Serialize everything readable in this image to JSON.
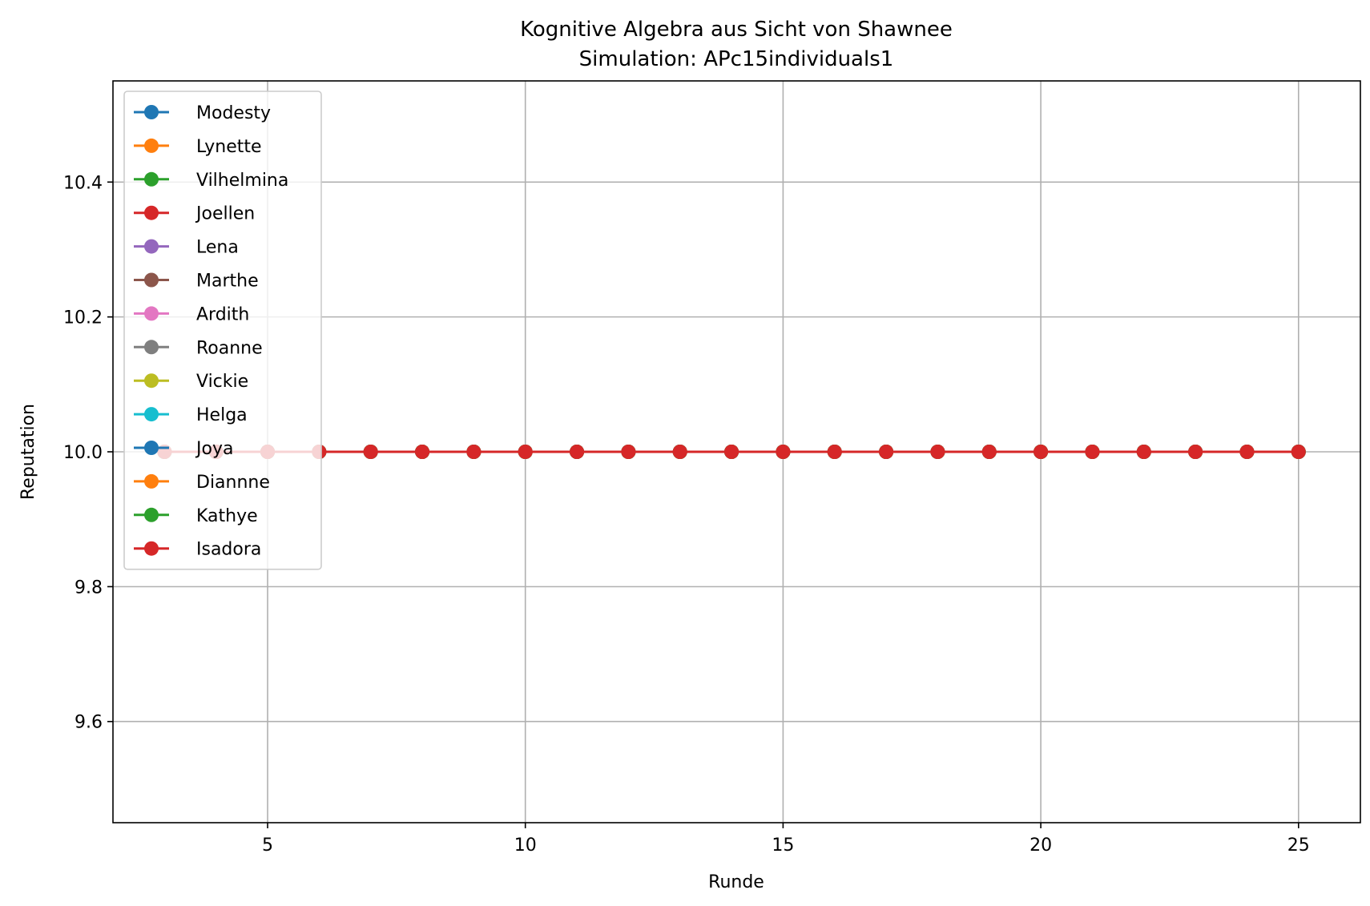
{
  "chart_data": {
    "type": "line",
    "title": "Kognitive Algebra aus Sicht von Shawnee",
    "subtitle": "Simulation: APc15individuals1",
    "xlabel": "Runde",
    "ylabel": "Reputation",
    "xlim": [
      2.0,
      26.2
    ],
    "ylim": [
      9.45,
      10.55
    ],
    "xticks": [
      5,
      10,
      15,
      20,
      25
    ],
    "yticks": [
      9.6,
      9.8,
      10.0,
      10.2,
      10.4
    ],
    "xtick_labels": [
      "5",
      "10",
      "15",
      "20",
      "25"
    ],
    "ytick_labels": [
      "9.6",
      "9.8",
      "10.0",
      "10.2",
      "10.4"
    ],
    "grid": true,
    "legend_position": "top-left",
    "series": [
      {
        "name": "Modesty",
        "color": "#1f77b4",
        "x": [
          3,
          4,
          5,
          6,
          7,
          8,
          9,
          10,
          11,
          12,
          13,
          14,
          15,
          16,
          17,
          18,
          19,
          20,
          21,
          22,
          23,
          24,
          25
        ],
        "y": [
          10,
          10,
          10,
          10,
          10,
          10,
          10,
          10,
          10,
          10,
          10,
          10,
          10,
          10,
          10,
          10,
          10,
          10,
          10,
          10,
          10,
          10,
          10
        ]
      },
      {
        "name": "Lynette",
        "color": "#ff7f0e",
        "x": [
          3,
          4,
          5,
          6,
          7,
          8,
          9,
          10,
          11,
          12,
          13,
          14,
          15,
          16,
          17,
          18,
          19,
          20,
          21,
          22,
          23,
          24,
          25
        ],
        "y": [
          10,
          10,
          10,
          10,
          10,
          10,
          10,
          10,
          10,
          10,
          10,
          10,
          10,
          10,
          10,
          10,
          10,
          10,
          10,
          10,
          10,
          10,
          10
        ]
      },
      {
        "name": "Vilhelmina",
        "color": "#2ca02c",
        "x": [
          3,
          4,
          5,
          6,
          7,
          8,
          9,
          10,
          11,
          12,
          13,
          14,
          15,
          16,
          17,
          18,
          19,
          20,
          21,
          22,
          23,
          24,
          25
        ],
        "y": [
          10,
          10,
          10,
          10,
          10,
          10,
          10,
          10,
          10,
          10,
          10,
          10,
          10,
          10,
          10,
          10,
          10,
          10,
          10,
          10,
          10,
          10,
          10
        ]
      },
      {
        "name": "Joellen",
        "color": "#d62728",
        "x": [
          3,
          4,
          5,
          6,
          7,
          8,
          9,
          10,
          11,
          12,
          13,
          14,
          15,
          16,
          17,
          18,
          19,
          20,
          21,
          22,
          23,
          24,
          25
        ],
        "y": [
          10,
          10,
          10,
          10,
          10,
          10,
          10,
          10,
          10,
          10,
          10,
          10,
          10,
          10,
          10,
          10,
          10,
          10,
          10,
          10,
          10,
          10,
          10
        ]
      },
      {
        "name": "Lena",
        "color": "#9467bd",
        "x": [
          3,
          4,
          5,
          6,
          7,
          8,
          9,
          10,
          11,
          12,
          13,
          14,
          15,
          16,
          17,
          18,
          19,
          20,
          21,
          22,
          23,
          24,
          25
        ],
        "y": [
          10,
          10,
          10,
          10,
          10,
          10,
          10,
          10,
          10,
          10,
          10,
          10,
          10,
          10,
          10,
          10,
          10,
          10,
          10,
          10,
          10,
          10,
          10
        ]
      },
      {
        "name": "Marthe",
        "color": "#8c564b",
        "x": [
          3,
          4,
          5,
          6,
          7,
          8,
          9,
          10,
          11,
          12,
          13,
          14,
          15,
          16,
          17,
          18,
          19,
          20,
          21,
          22,
          23,
          24,
          25
        ],
        "y": [
          10,
          10,
          10,
          10,
          10,
          10,
          10,
          10,
          10,
          10,
          10,
          10,
          10,
          10,
          10,
          10,
          10,
          10,
          10,
          10,
          10,
          10,
          10
        ]
      },
      {
        "name": "Ardith",
        "color": "#e377c2",
        "x": [
          3,
          4,
          5,
          6,
          7,
          8,
          9,
          10,
          11,
          12,
          13,
          14,
          15,
          16,
          17,
          18,
          19,
          20,
          21,
          22,
          23,
          24,
          25
        ],
        "y": [
          10,
          10,
          10,
          10,
          10,
          10,
          10,
          10,
          10,
          10,
          10,
          10,
          10,
          10,
          10,
          10,
          10,
          10,
          10,
          10,
          10,
          10,
          10
        ]
      },
      {
        "name": "Roanne",
        "color": "#7f7f7f",
        "x": [
          3,
          4,
          5,
          6,
          7,
          8,
          9,
          10,
          11,
          12,
          13,
          14,
          15,
          16,
          17,
          18,
          19,
          20,
          21,
          22,
          23,
          24,
          25
        ],
        "y": [
          10,
          10,
          10,
          10,
          10,
          10,
          10,
          10,
          10,
          10,
          10,
          10,
          10,
          10,
          10,
          10,
          10,
          10,
          10,
          10,
          10,
          10,
          10
        ]
      },
      {
        "name": "Vickie",
        "color": "#bcbd22",
        "x": [
          3,
          4,
          5,
          6,
          7,
          8,
          9,
          10,
          11,
          12,
          13,
          14,
          15,
          16,
          17,
          18,
          19,
          20,
          21,
          22,
          23,
          24,
          25
        ],
        "y": [
          10,
          10,
          10,
          10,
          10,
          10,
          10,
          10,
          10,
          10,
          10,
          10,
          10,
          10,
          10,
          10,
          10,
          10,
          10,
          10,
          10,
          10,
          10
        ]
      },
      {
        "name": "Helga",
        "color": "#17becf",
        "x": [
          3,
          4,
          5,
          6,
          7,
          8,
          9,
          10,
          11,
          12,
          13,
          14,
          15,
          16,
          17,
          18,
          19,
          20,
          21,
          22,
          23,
          24,
          25
        ],
        "y": [
          10,
          10,
          10,
          10,
          10,
          10,
          10,
          10,
          10,
          10,
          10,
          10,
          10,
          10,
          10,
          10,
          10,
          10,
          10,
          10,
          10,
          10,
          10
        ]
      },
      {
        "name": "Joya",
        "color": "#1f77b4",
        "x": [
          3,
          4,
          5,
          6,
          7,
          8,
          9,
          10,
          11,
          12,
          13,
          14,
          15,
          16,
          17,
          18,
          19,
          20,
          21,
          22,
          23,
          24,
          25
        ],
        "y": [
          10,
          10,
          10,
          10,
          10,
          10,
          10,
          10,
          10,
          10,
          10,
          10,
          10,
          10,
          10,
          10,
          10,
          10,
          10,
          10,
          10,
          10,
          10
        ]
      },
      {
        "name": "Diannne",
        "color": "#ff7f0e",
        "x": [
          3,
          4,
          5,
          6,
          7,
          8,
          9,
          10,
          11,
          12,
          13,
          14,
          15,
          16,
          17,
          18,
          19,
          20,
          21,
          22,
          23,
          24,
          25
        ],
        "y": [
          10,
          10,
          10,
          10,
          10,
          10,
          10,
          10,
          10,
          10,
          10,
          10,
          10,
          10,
          10,
          10,
          10,
          10,
          10,
          10,
          10,
          10,
          10
        ]
      },
      {
        "name": "Kathye",
        "color": "#2ca02c",
        "x": [
          3,
          4,
          5,
          6,
          7,
          8,
          9,
          10,
          11,
          12,
          13,
          14,
          15,
          16,
          17,
          18,
          19,
          20,
          21,
          22,
          23,
          24,
          25
        ],
        "y": [
          10,
          10,
          10,
          10,
          10,
          10,
          10,
          10,
          10,
          10,
          10,
          10,
          10,
          10,
          10,
          10,
          10,
          10,
          10,
          10,
          10,
          10,
          10
        ]
      },
      {
        "name": "Isadora",
        "color": "#d62728",
        "x": [
          3,
          4,
          5,
          6,
          7,
          8,
          9,
          10,
          11,
          12,
          13,
          14,
          15,
          16,
          17,
          18,
          19,
          20,
          21,
          22,
          23,
          24,
          25
        ],
        "y": [
          10,
          10,
          10,
          10,
          10,
          10,
          10,
          10,
          10,
          10,
          10,
          10,
          10,
          10,
          10,
          10,
          10,
          10,
          10,
          10,
          10,
          10,
          10
        ]
      }
    ]
  }
}
